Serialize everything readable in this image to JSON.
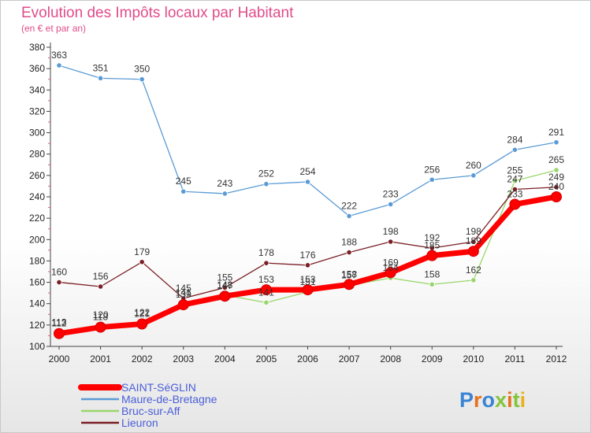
{
  "chart_data": {
    "type": "line",
    "title": "Evolution des Impôts locaux par Habitant",
    "subtitle": "(en € et par an)",
    "xlabel": "",
    "ylabel": "",
    "x": [
      "2000",
      "2001",
      "2002",
      "2003",
      "2004",
      "2005",
      "2006",
      "2007",
      "2008",
      "2009",
      "2010",
      "2011",
      "2012"
    ],
    "ylim": [
      100,
      380
    ],
    "yticks": [
      100,
      120,
      140,
      160,
      180,
      200,
      220,
      240,
      260,
      280,
      300,
      320,
      340,
      360,
      380
    ],
    "grid": false,
    "legend_position": "bottom-left",
    "series": [
      {
        "name": "SAINT-SéGLIN",
        "color": "#ff0000",
        "style": "thick",
        "values": [
          112,
          118,
          121,
          139,
          147,
          153,
          153,
          158,
          169,
          185,
          189,
          233,
          240
        ]
      },
      {
        "name": "Maure-de-Bretagne",
        "color": "#5b9bd5",
        "style": "thin",
        "values": [
          363,
          351,
          350,
          245,
          243,
          252,
          254,
          222,
          233,
          256,
          260,
          284,
          291
        ]
      },
      {
        "name": "Bruc-sur-Aff",
        "color": "#99d66c",
        "style": "thin",
        "values": [
          113,
          120,
          122,
          141,
          148,
          141,
          151,
          157,
          164,
          158,
          162,
          255,
          265
        ]
      },
      {
        "name": "Lieuron",
        "color": "#7a1f25",
        "style": "thin",
        "values": [
          160,
          156,
          179,
          145,
          155,
          178,
          176,
          188,
          198,
          192,
          198,
          247,
          249
        ]
      }
    ]
  },
  "brand": {
    "name": "Proxiti",
    "letter_colors": [
      "#3a84d4",
      "#e8711d",
      "#3a84d4",
      "#84c43a",
      "#e8711d",
      "#84c43a",
      "#e8b21d"
    ]
  }
}
